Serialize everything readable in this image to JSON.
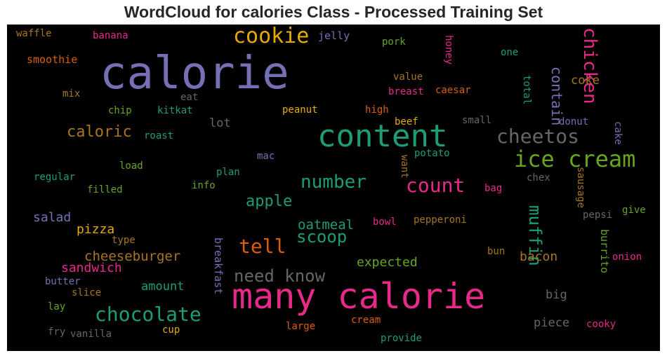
{
  "chart_data": {
    "type": "wordcloud",
    "title": "WordCloud for calories Class - Processed Training Set",
    "background": "#000000",
    "words": [
      {
        "text": "calorie",
        "color": "#7570b3"
      },
      {
        "text": "many calorie",
        "color": "#e7298a"
      },
      {
        "text": "content",
        "color": "#1b9e77"
      },
      {
        "text": "ice cream",
        "color": "#66a61e"
      },
      {
        "text": "cookie",
        "color": "#e6ab02"
      },
      {
        "text": "chocolate",
        "color": "#1b9e77"
      },
      {
        "text": "count",
        "color": "#e7298a"
      },
      {
        "text": "cheetos",
        "color": "#666666"
      },
      {
        "text": "number",
        "color": "#1b9e77"
      },
      {
        "text": "tell",
        "color": "#d95f02"
      },
      {
        "text": "need know",
        "color": "#666666"
      },
      {
        "text": "chicken",
        "color": "#e7298a"
      },
      {
        "text": "muffin",
        "color": "#1b9e77"
      },
      {
        "text": "caloric",
        "color": "#a6761d"
      },
      {
        "text": "apple",
        "color": "#1b9e77"
      },
      {
        "text": "scoop",
        "color": "#1b9e77"
      },
      {
        "text": "cheeseburger",
        "color": "#a6761d"
      },
      {
        "text": "contain",
        "color": "#7570b3"
      },
      {
        "text": "oatmeal",
        "color": "#1b9e77"
      },
      {
        "text": "expected",
        "color": "#66a61e"
      },
      {
        "text": "bacon",
        "color": "#a6761d"
      },
      {
        "text": "sandwich",
        "color": "#e7298a"
      },
      {
        "text": "pizza",
        "color": "#e6ab02"
      },
      {
        "text": "salad",
        "color": "#7570b3"
      },
      {
        "text": "amount",
        "color": "#1b9e77"
      },
      {
        "text": "piece",
        "color": "#666666"
      },
      {
        "text": "big",
        "color": "#666666"
      },
      {
        "text": "lot",
        "color": "#666666"
      },
      {
        "text": "coke",
        "color": "#a6761d"
      },
      {
        "text": "breakfast",
        "color": "#7570b3"
      },
      {
        "text": "burrito",
        "color": "#66a61e"
      },
      {
        "text": "waffle",
        "color": "#a6761d"
      },
      {
        "text": "banana",
        "color": "#e7298a"
      },
      {
        "text": "jelly",
        "color": "#7570b3"
      },
      {
        "text": "pork",
        "color": "#66a61e"
      },
      {
        "text": "honey",
        "color": "#e7298a"
      },
      {
        "text": "one",
        "color": "#1b9e77"
      },
      {
        "text": "smoothie",
        "color": "#d95f02"
      },
      {
        "text": "value",
        "color": "#a6761d"
      },
      {
        "text": "mix",
        "color": "#a6761d"
      },
      {
        "text": "eat",
        "color": "#666666"
      },
      {
        "text": "breast",
        "color": "#e7298a"
      },
      {
        "text": "caesar",
        "color": "#d95f02"
      },
      {
        "text": "total",
        "color": "#1b9e77"
      },
      {
        "text": "chip",
        "color": "#66a61e"
      },
      {
        "text": "kitkat",
        "color": "#1b9e77"
      },
      {
        "text": "peanut",
        "color": "#e6ab02"
      },
      {
        "text": "high",
        "color": "#d95f02"
      },
      {
        "text": "small",
        "color": "#666666"
      },
      {
        "text": "donut",
        "color": "#7570b3"
      },
      {
        "text": "roast",
        "color": "#1b9e77"
      },
      {
        "text": "beef",
        "color": "#e6ab02"
      },
      {
        "text": "cake",
        "color": "#7570b3"
      },
      {
        "text": "potato",
        "color": "#1b9e77"
      },
      {
        "text": "mac",
        "color": "#7570b3"
      },
      {
        "text": "load",
        "color": "#66a61e"
      },
      {
        "text": "plan",
        "color": "#1b9e77"
      },
      {
        "text": "want",
        "color": "#a6761d"
      },
      {
        "text": "chex",
        "color": "#666666"
      },
      {
        "text": "regular",
        "color": "#1b9e77"
      },
      {
        "text": "filled",
        "color": "#66a61e"
      },
      {
        "text": "info",
        "color": "#66a61e"
      },
      {
        "text": "bag",
        "color": "#e7298a"
      },
      {
        "text": "sausage",
        "color": "#a6761d"
      },
      {
        "text": "pepsi",
        "color": "#666666"
      },
      {
        "text": "give",
        "color": "#66a61e"
      },
      {
        "text": "bowl",
        "color": "#e7298a"
      },
      {
        "text": "pepperoni",
        "color": "#a6761d"
      },
      {
        "text": "type",
        "color": "#a6761d"
      },
      {
        "text": "bun",
        "color": "#a6761d"
      },
      {
        "text": "onion",
        "color": "#e7298a"
      },
      {
        "text": "butter",
        "color": "#7570b3"
      },
      {
        "text": "slice",
        "color": "#a6761d"
      },
      {
        "text": "lay",
        "color": "#66a61e"
      },
      {
        "text": "cup",
        "color": "#e6ab02"
      },
      {
        "text": "cream",
        "color": "#d95f02"
      },
      {
        "text": "large",
        "color": "#d95f02"
      },
      {
        "text": "cooky",
        "color": "#e7298a"
      },
      {
        "text": "fry",
        "color": "#666666"
      },
      {
        "text": "vanilla",
        "color": "#666666"
      },
      {
        "text": "provide",
        "color": "#1b9e77"
      }
    ]
  }
}
